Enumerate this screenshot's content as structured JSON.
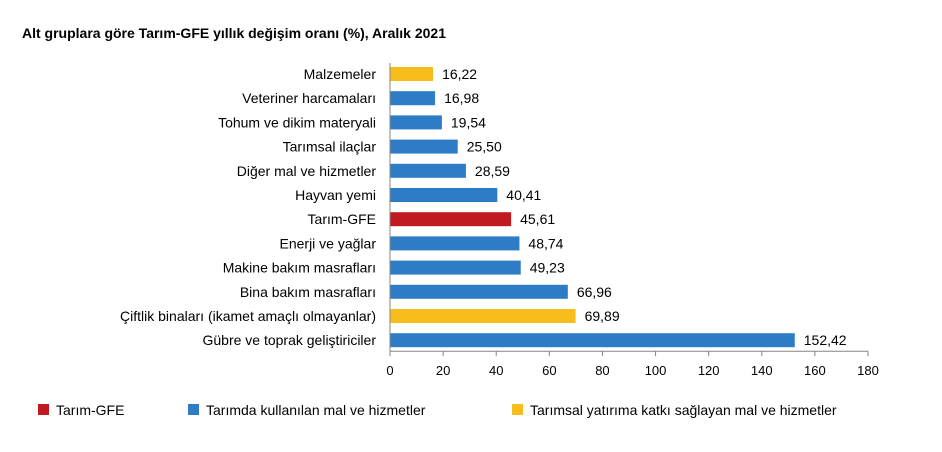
{
  "chart_data": {
    "type": "bar",
    "orientation": "horizontal",
    "title": "Alt gruplara göre Tarım-GFE yıllık değişim oranı (%), Aralık 2021",
    "xlabel": "",
    "ylabel": "",
    "xlim": [
      0,
      180
    ],
    "ticks": [
      0,
      20,
      40,
      60,
      80,
      100,
      120,
      140,
      160,
      180
    ],
    "grid": false,
    "legend_position": "bottom",
    "colors": {
      "tarim_gfe": "#c0191f",
      "mal_hizmet": "#2e7bc6",
      "yatirim": "#f7bd1b"
    },
    "legend": [
      {
        "label": "Tarım-GFE",
        "color_key": "tarim_gfe"
      },
      {
        "label": "Tarımda kullanılan mal ve hizmetler",
        "color_key": "mal_hizmet"
      },
      {
        "label": "Tarımsal yatırıma katkı sağlayan mal ve hizmetler",
        "color_key": "yatirim"
      }
    ],
    "bars": [
      {
        "category": "Malzemeler",
        "value": 16.22,
        "label": "16,22",
        "group": "yatirim"
      },
      {
        "category": "Veteriner harcamaları",
        "value": 16.98,
        "label": "16,98",
        "group": "mal_hizmet"
      },
      {
        "category": "Tohum ve dikim materyali",
        "value": 19.54,
        "label": "19,54",
        "group": "mal_hizmet"
      },
      {
        "category": "Tarımsal ilaçlar",
        "value": 25.5,
        "label": "25,50",
        "group": "mal_hizmet"
      },
      {
        "category": "Diğer mal ve hizmetler",
        "value": 28.59,
        "label": "28,59",
        "group": "mal_hizmet"
      },
      {
        "category": "Hayvan yemi",
        "value": 40.41,
        "label": "40,41",
        "group": "mal_hizmet"
      },
      {
        "category": "Tarım-GFE",
        "value": 45.61,
        "label": "45,61",
        "group": "tarim_gfe"
      },
      {
        "category": "Enerji ve yağlar",
        "value": 48.74,
        "label": "48,74",
        "group": "mal_hizmet"
      },
      {
        "category": "Makine bakım masrafları",
        "value": 49.23,
        "label": "49,23",
        "group": "mal_hizmet"
      },
      {
        "category": "Bina bakım masrafları",
        "value": 66.96,
        "label": "66,96",
        "group": "mal_hizmet"
      },
      {
        "category": "Çiftlik binaları (ikamet amaçlı olmayanlar)",
        "value": 69.89,
        "label": "69,89",
        "group": "yatirim"
      },
      {
        "category": "Gübre ve toprak geliştiriciler",
        "value": 152.42,
        "label": "152,42",
        "group": "mal_hizmet"
      }
    ]
  }
}
